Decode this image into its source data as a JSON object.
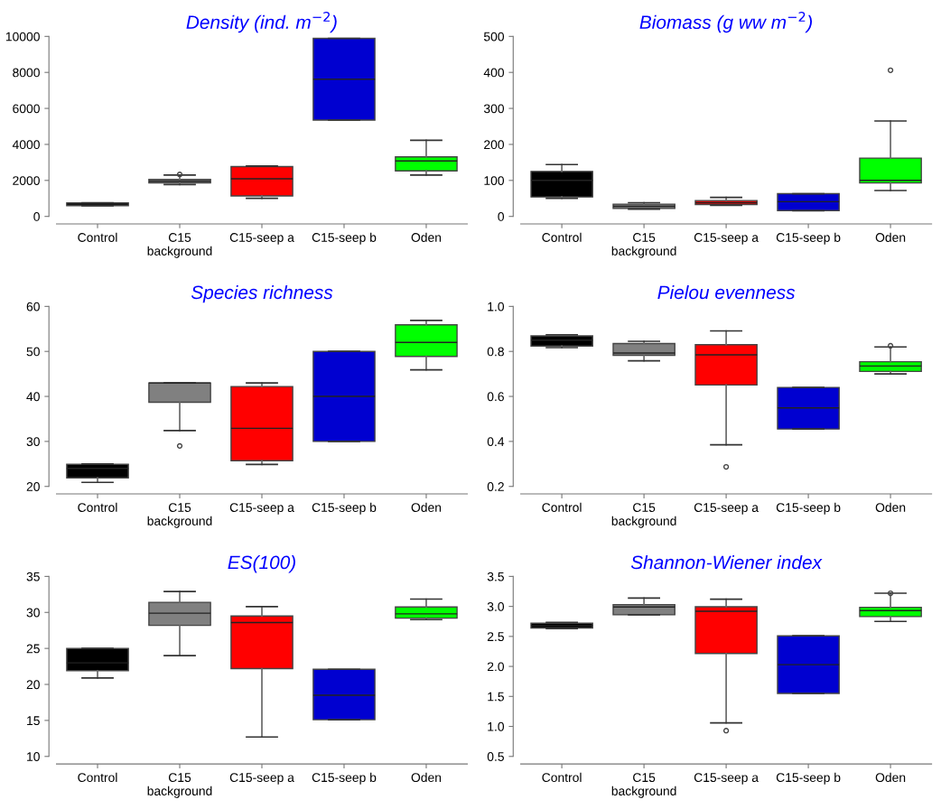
{
  "chart_data": [
    {
      "type": "box",
      "title": "Density (ind. m$^{−2}$)",
      "categories": [
        "Control",
        "C15\nbackground",
        "C15-seep a",
        "C15-seep b",
        "Oden"
      ],
      "colors": [
        "#000000",
        "#808080",
        "#ff0000",
        "#0000d0",
        "#00ff00"
      ],
      "ylim": [
        0,
        10000
      ],
      "yticks": [
        0,
        2000,
        4000,
        6000,
        8000,
        10000
      ],
      "boxes": [
        {
          "low": 590,
          "q1": 600,
          "median": 680,
          "q3": 750,
          "high": 760
        },
        {
          "low": 1770,
          "q1": 1860,
          "median": 1950,
          "q3": 2050,
          "high": 2300,
          "outliers": [
            2330
          ]
        },
        {
          "low": 1010,
          "q1": 1140,
          "median": 2090,
          "q3": 2770,
          "high": 2800
        },
        {
          "low": 5350,
          "q1": 5350,
          "median": 7620,
          "q3": 9890,
          "high": 9890
        },
        {
          "low": 2300,
          "q1": 2530,
          "median": 3080,
          "q3": 3310,
          "high": 4230
        }
      ]
    },
    {
      "type": "box",
      "title": "Biomass (g ww m$^{−2}$)",
      "categories": [
        "Control",
        "C15\nbackground",
        "C15-seep a",
        "C15-seep b",
        "Oden"
      ],
      "colors": [
        "#000000",
        "#808080",
        "#ff0000",
        "#0000d0",
        "#00ff00"
      ],
      "ylim": [
        0,
        500
      ],
      "yticks": [
        0,
        100,
        200,
        300,
        400,
        500
      ],
      "boxes": [
        {
          "low": 50,
          "q1": 54,
          "median": 100,
          "q3": 125,
          "high": 144
        },
        {
          "low": 20,
          "q1": 22,
          "median": 28,
          "q3": 34,
          "high": 38
        },
        {
          "low": 31,
          "q1": 33,
          "median": 38,
          "q3": 44,
          "high": 53
        },
        {
          "low": 16,
          "q1": 16,
          "median": 41,
          "q3": 63,
          "high": 63
        },
        {
          "low": 72,
          "q1": 93,
          "median": 100,
          "q3": 162,
          "high": 265,
          "outliers": [
            406
          ]
        }
      ]
    },
    {
      "type": "box",
      "title": "Species richness",
      "categories": [
        "Control",
        "C15\nbackground",
        "C15-seep a",
        "C15-seep b",
        "Oden"
      ],
      "colors": [
        "#000000",
        "#808080",
        "#ff0000",
        "#0000d0",
        "#00ff00"
      ],
      "ylim": [
        20,
        60
      ],
      "yticks": [
        20,
        30,
        40,
        50,
        60
      ],
      "boxes": [
        {
          "low": 20.9,
          "q1": 21.9,
          "median": 24,
          "q3": 24.9,
          "high": 25
        },
        {
          "low": 32.4,
          "q1": 38.7,
          "median": 43,
          "q3": 43,
          "high": 43,
          "outliers": [
            29
          ]
        },
        {
          "low": 24.9,
          "q1": 25.7,
          "median": 32.9,
          "q3": 42.2,
          "high": 43
        },
        {
          "low": 30,
          "q1": 30,
          "median": 40,
          "q3": 50,
          "high": 50
        },
        {
          "low": 45.9,
          "q1": 48.9,
          "median": 52,
          "q3": 55.9,
          "high": 56.9
        }
      ]
    },
    {
      "type": "box",
      "title": "Pielou evenness",
      "categories": [
        "Control",
        "C15\nbackground",
        "C15-seep a",
        "C15-seep b",
        "Oden"
      ],
      "colors": [
        "#000000",
        "#808080",
        "#ff0000",
        "#0000d0",
        "#00ff00"
      ],
      "ylim": [
        0.2,
        1.0
      ],
      "yticks": [
        {
          "value": 0.2,
          "label": "0.2"
        },
        {
          "value": 0.4,
          "label": "0.4"
        },
        {
          "value": 0.6,
          "label": "0.6"
        },
        {
          "value": 0.8,
          "label": "0.8"
        },
        {
          "value": 1.0,
          "label": "1.0"
        }
      ],
      "boxes": [
        {
          "low": 0.817,
          "q1": 0.824,
          "median": 0.85,
          "q3": 0.869,
          "high": 0.874
        },
        {
          "low": 0.758,
          "q1": 0.783,
          "median": 0.793,
          "q3": 0.835,
          "high": 0.845
        },
        {
          "low": 0.385,
          "q1": 0.651,
          "median": 0.785,
          "q3": 0.83,
          "high": 0.891,
          "outliers": [
            0.287
          ]
        },
        {
          "low": 0.455,
          "q1": 0.455,
          "median": 0.549,
          "q3": 0.64,
          "high": 0.64
        },
        {
          "low": 0.7,
          "q1": 0.711,
          "median": 0.735,
          "q3": 0.754,
          "high": 0.82,
          "outliers": [
            0.825
          ]
        }
      ]
    },
    {
      "type": "box",
      "title": "ES(100)",
      "categories": [
        "Control",
        "C15\nbackground",
        "C15-seep a",
        "C15-seep b",
        "Oden"
      ],
      "colors": [
        "#000000",
        "#808080",
        "#ff0000",
        "#0000d0",
        "#00ff00"
      ],
      "ylim": [
        10,
        35
      ],
      "yticks": [
        10,
        15,
        20,
        25,
        30,
        35
      ],
      "boxes": [
        {
          "low": 20.9,
          "q1": 21.9,
          "median": 23,
          "q3": 25,
          "high": 25
        },
        {
          "low": 24,
          "q1": 28.2,
          "median": 29.9,
          "q3": 31.4,
          "high": 32.9
        },
        {
          "low": 12.7,
          "q1": 22.2,
          "median": 28.6,
          "q3": 29.5,
          "high": 30.8
        },
        {
          "low": 15.1,
          "q1": 15.1,
          "median": 18.5,
          "q3": 22.1,
          "high": 22.1
        },
        {
          "low": 29.0,
          "q1": 29.2,
          "median": 29.8,
          "q3": 30.75,
          "high": 31.85
        }
      ]
    },
    {
      "type": "box",
      "title": "Shannon-Wiener index",
      "categories": [
        "Control",
        "C15\nbackground",
        "C15-seep a",
        "C15-seep b",
        "Oden"
      ],
      "colors": [
        "#000000",
        "#808080",
        "#ff0000",
        "#0000d0",
        "#00ff00"
      ],
      "ylim": [
        0.5,
        3.5
      ],
      "yticks": [
        0.5,
        {
          "value": 1.0,
          "label": "1.0"
        },
        1.5,
        {
          "value": 2.0,
          "label": "2.0"
        },
        2.5,
        {
          "value": 3.0,
          "label": "3.0"
        },
        3.5
      ],
      "boxes": [
        {
          "low": 2.63,
          "q1": 2.64,
          "median": 2.68,
          "q3": 2.72,
          "high": 2.735
        },
        {
          "low": 2.86,
          "q1": 2.86,
          "median": 2.99,
          "q3": 3.03,
          "high": 3.14
        },
        {
          "low": 1.06,
          "q1": 2.215,
          "median": 2.92,
          "q3": 2.995,
          "high": 3.12,
          "outliers": [
            0.93
          ]
        },
        {
          "low": 1.55,
          "q1": 1.55,
          "median": 2.03,
          "q3": 2.51,
          "high": 2.51
        },
        {
          "low": 2.75,
          "q1": 2.83,
          "median": 2.93,
          "q3": 2.985,
          "high": 3.22,
          "outliers": [
            3.22
          ]
        }
      ]
    }
  ]
}
